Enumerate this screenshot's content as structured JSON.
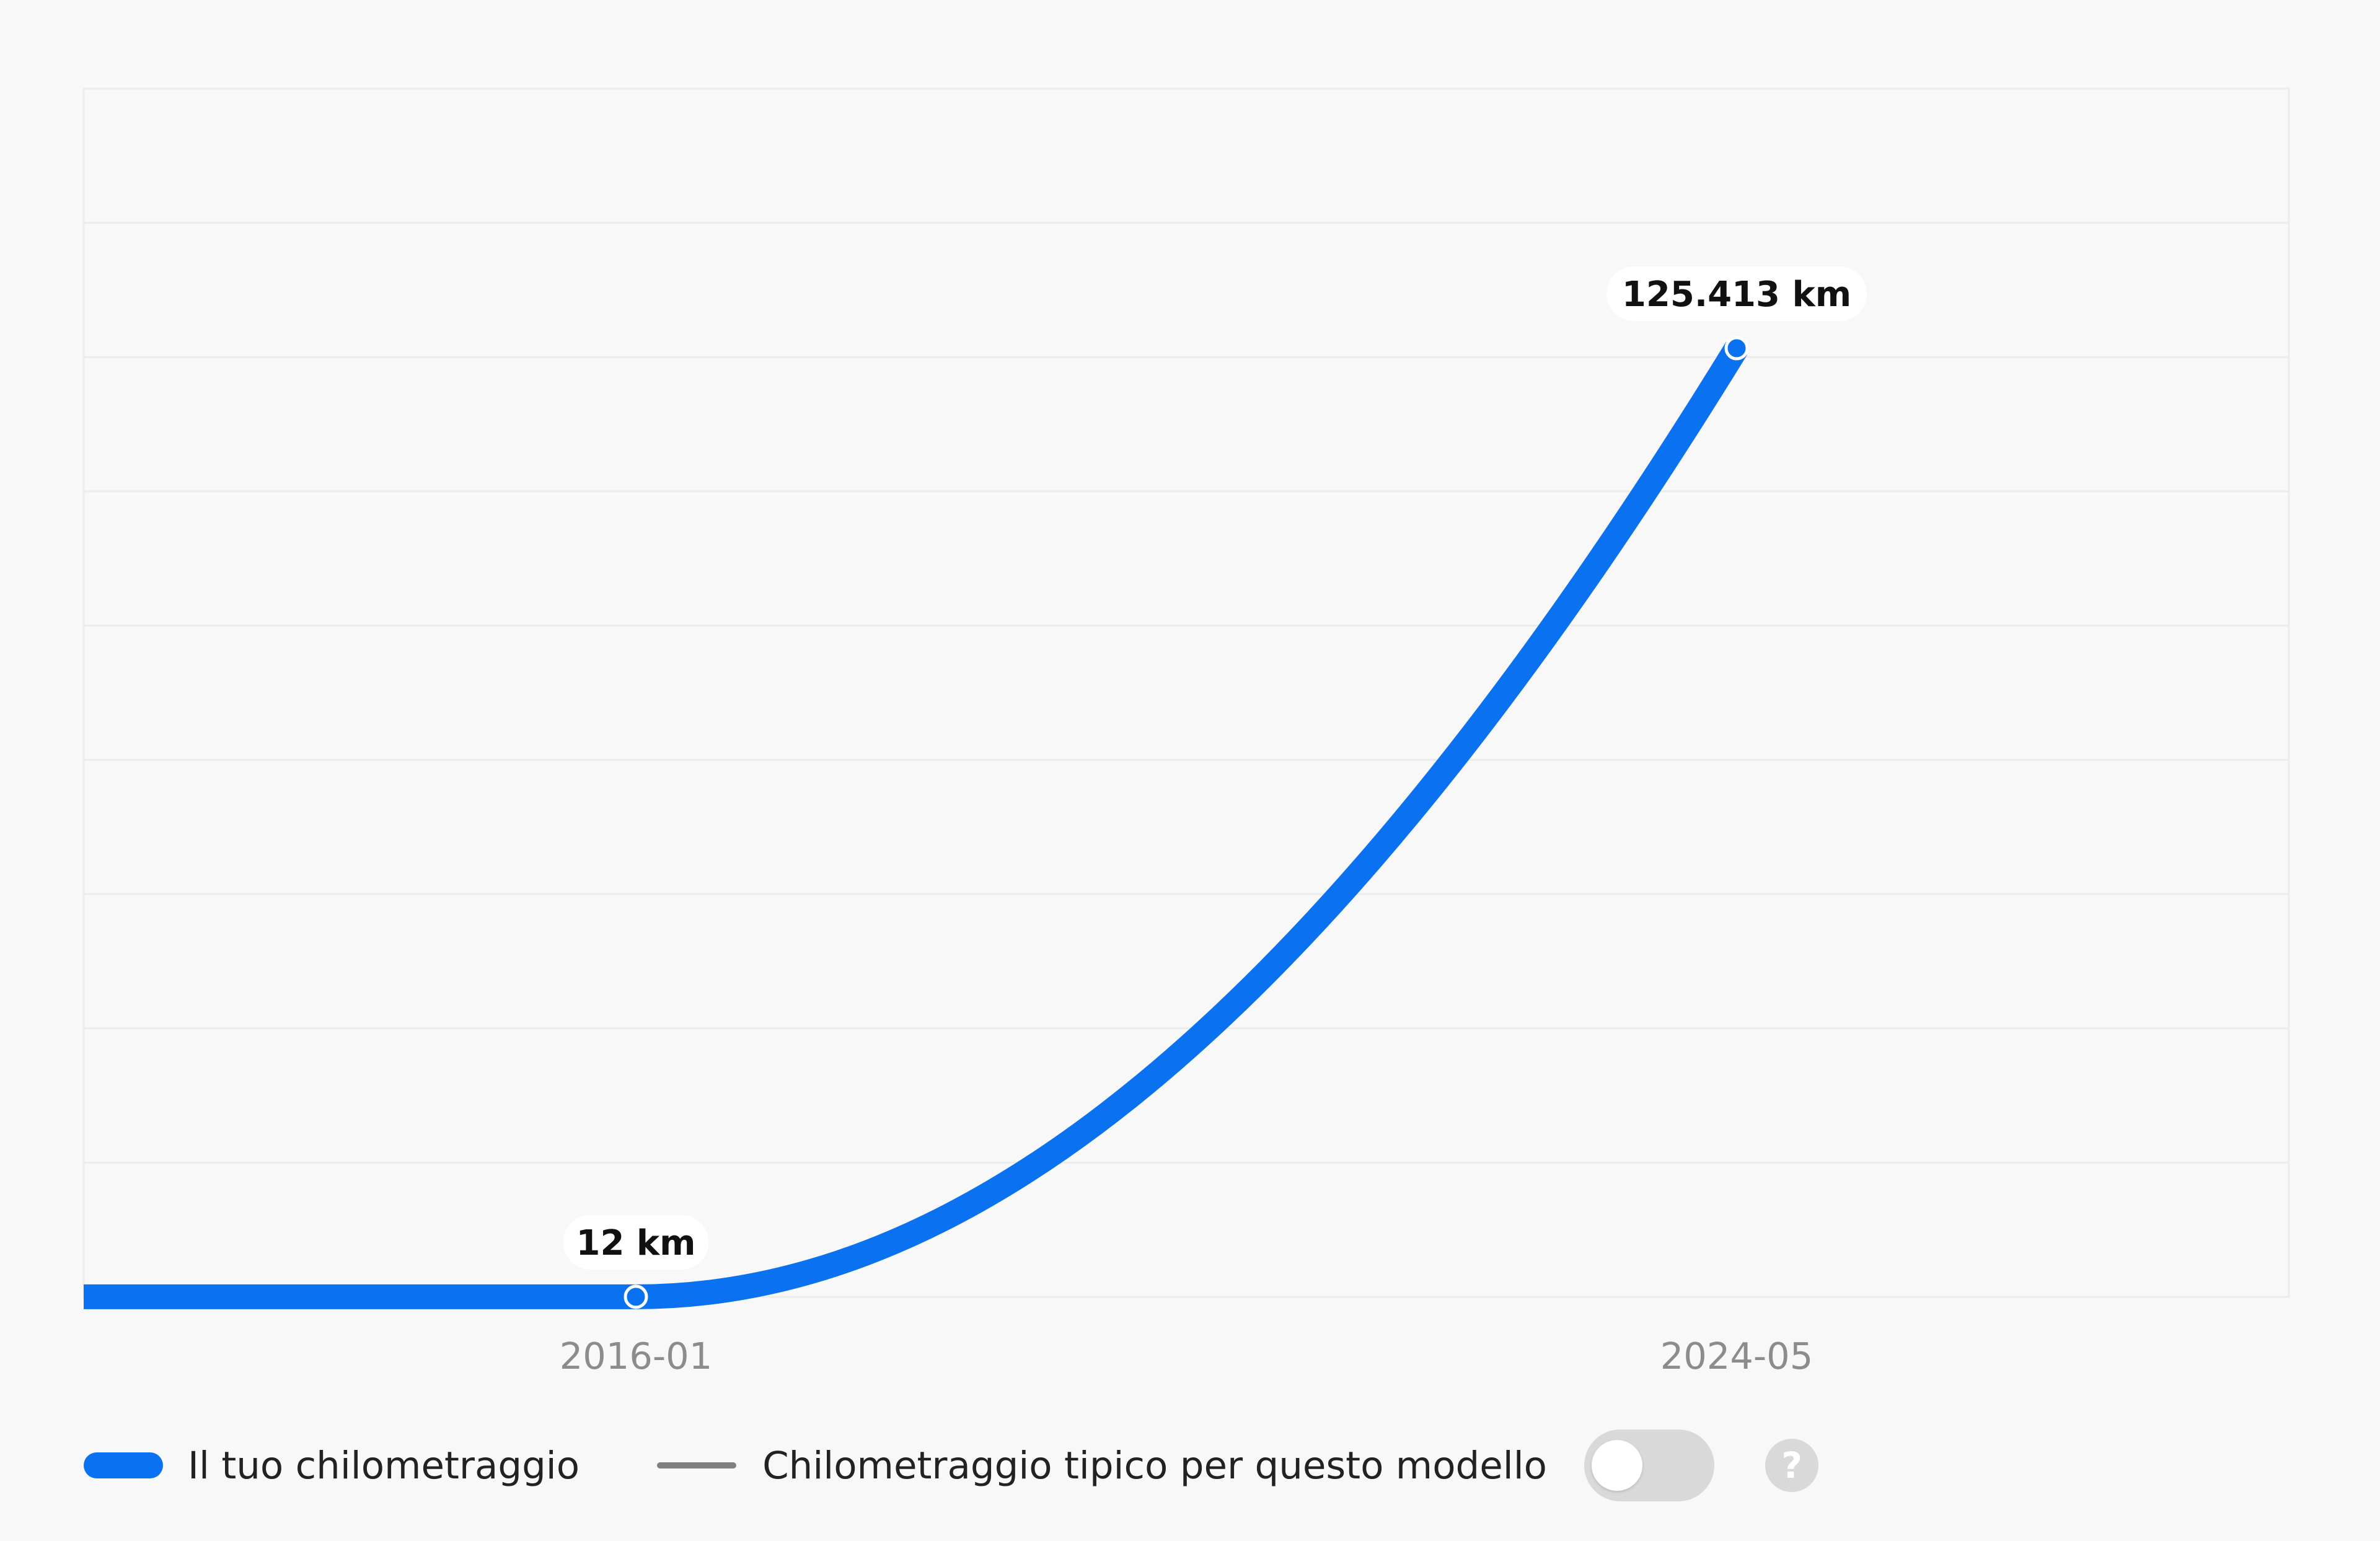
{
  "chart_data": {
    "type": "line",
    "x": [
      "2016-01",
      "2024-05"
    ],
    "series": [
      {
        "name": "Il tuo chilometraggio",
        "values": [
          12,
          125413
        ],
        "labels": [
          "12 km",
          "125.413 km"
        ],
        "color": "#0a72f0"
      }
    ],
    "x_ticks": [
      "2016-01",
      "2024-05"
    ],
    "grid": true,
    "legend_position": "bottom-left"
  },
  "legend": {
    "series_label": "Il tuo chilometraggio",
    "typical_label": "Chilometraggio tipico per questo modello",
    "typical_color": "#808080",
    "toggle_on": false,
    "help_symbol": "?"
  }
}
